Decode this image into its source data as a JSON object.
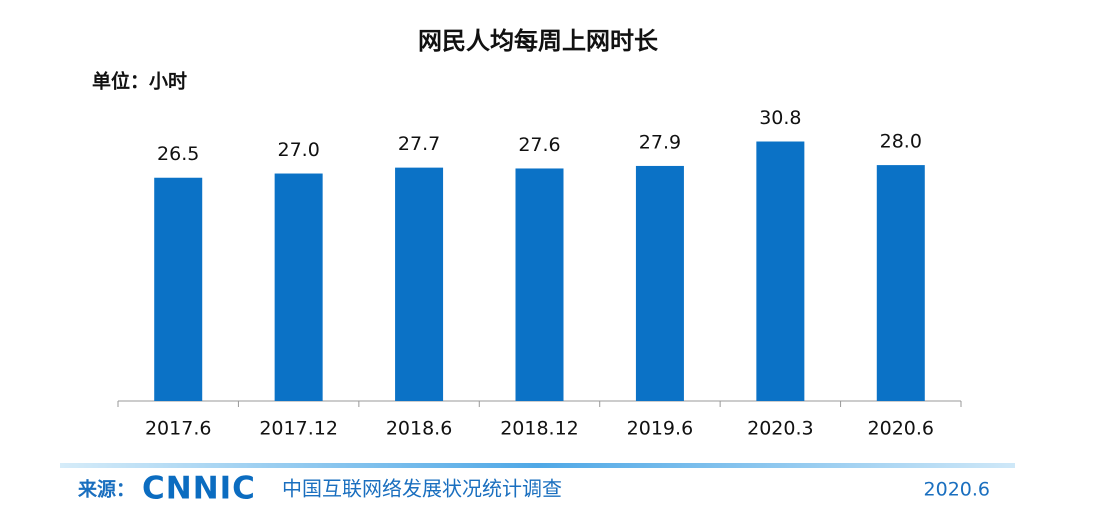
{
  "chart_data": {
    "type": "bar",
    "title": "网民人均每周上网时长",
    "unit_label": "单位：小时",
    "categories": [
      "2017.6",
      "2017.12",
      "2018.6",
      "2018.12",
      "2019.6",
      "2020.3",
      "2020.6"
    ],
    "values": [
      26.5,
      27.0,
      27.7,
      27.6,
      27.9,
      30.8,
      28.0
    ],
    "value_labels": [
      "26.5",
      "27.0",
      "27.7",
      "27.6",
      "27.9",
      "30.8",
      "28.0"
    ],
    "color": "#0b72c6",
    "ylim": [
      0,
      40
    ]
  },
  "footer": {
    "source_label": "来源：",
    "logo": "CNNIC",
    "survey": "中国互联网络发展状况统计调查",
    "date": "2020.6"
  }
}
